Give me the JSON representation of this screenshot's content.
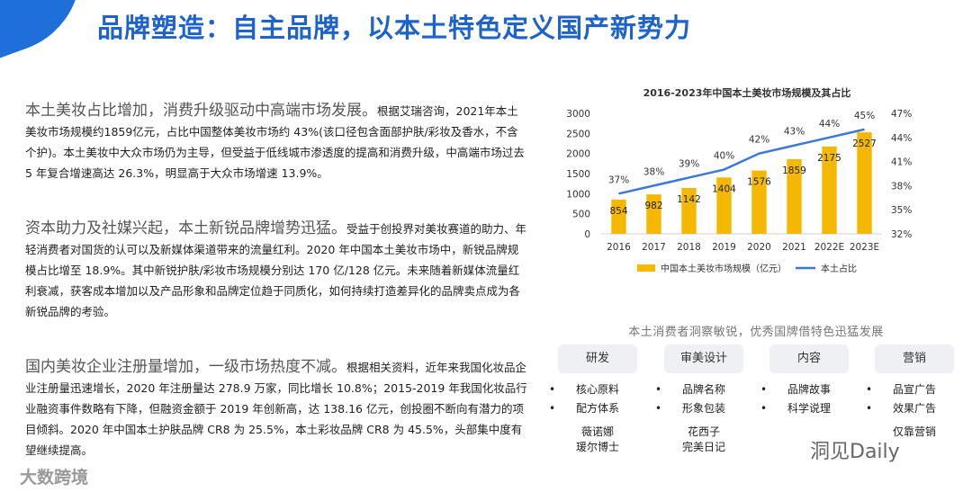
{
  "title": "品牌塑造：自主品牌，以本土特色定义国产新势力",
  "paragraphs": [
    {
      "lead": "本土美妆占比增加，消费升级驱动中高端市场发展。",
      "body": "根据艾瑞咨询，2021年本土美妆市场规模约1859亿元，占比中国整体美妆市场约 43%(该口径包含面部护肤/彩妆及香水，不含个护)。本土美妆中大众市场仍为主导，但受益于低线城市渗透度的提高和消费升级，中高端市场过去 5 年复合增速高达 26.3%，明显高于大众市场增速 13.9%。"
    },
    {
      "lead": "资本助力及社媒兴起，本土新锐品牌增势迅猛。",
      "body": "受益于创投界对美妆赛道的助力、年轻消费者对国货的认可以及新媒体渠道带来的流量红利。2020 年中国本土美妆市场中，新锐品牌规模占比增至 18.9%。其中新锐护肤/彩妆市场规模分别达 170 亿/128 亿元。未来随着新媒体流量红利衰减，获客成本增加以及产品形象和品牌定位趋于同质化，如何持续打造差异化的品牌卖点成为各新锐品牌的考验。"
    },
    {
      "lead": "国内美妆企业注册量增加，一级市场热度不减。",
      "body": "根据相关资料，近年来我国化妆品企业注册量迅速增长，2020 年注册量达 278.9 万家，同比增长 10.8%；2015-2019 年我国化妆品行业融资事件数略有下降，但融资金额于 2019 年创新高，达 138.16 亿元，创投圈不断向有潜力的项目倾斜。2020 年中国本土护肤品牌 CR8 为 25.5%，本土彩妆品牌 CR8 为 45.5%，头部集中度有望继续提高。"
    }
  ],
  "chart_data": {
    "type": "bar",
    "title": "2016-2023年中国本土美妆市场规模及其占比",
    "categories": [
      "2016",
      "2017",
      "2018",
      "2019",
      "2020",
      "2021",
      "2022E",
      "2023E"
    ],
    "series": [
      {
        "name": "中国本土美妆市场规模（亿元）",
        "type": "bar",
        "axis": "left",
        "values": [
          854,
          982,
          1142,
          1404,
          1576,
          1859,
          2175,
          2527
        ]
      },
      {
        "name": "本土占比",
        "type": "line",
        "axis": "right",
        "values": [
          37,
          38,
          39,
          40,
          42,
          43,
          44,
          45
        ],
        "labels": [
          "37%",
          "38%",
          "39%",
          "40%",
          "42%",
          "43%",
          "44%",
          "45%"
        ]
      }
    ],
    "ylim_left": [
      0,
      3000
    ],
    "yticks_left": [
      "0",
      "500",
      "1000",
      "1500",
      "2000",
      "2500",
      "3000"
    ],
    "ylim_right": [
      32,
      47
    ],
    "yticks_right": [
      "32%",
      "35%",
      "38%",
      "41%",
      "44%",
      "47%"
    ],
    "legend_position": "bottom",
    "colors": {
      "bar": "#f5b800",
      "line": "#3b78d8"
    }
  },
  "features": {
    "title": "本土消费者洞察敏锐，优秀国牌借特色迅猛发展",
    "columns": [
      {
        "head": "研发",
        "items": [
          "核心原料",
          "配方体系"
        ],
        "brands": [
          "薇诺娜",
          "瑗尔博士"
        ]
      },
      {
        "head": "审美设计",
        "items": [
          "品牌名称",
          "形象包装"
        ],
        "brands": [
          "花西子",
          "完美日记"
        ]
      },
      {
        "head": "内容",
        "items": [
          "品牌故事",
          "科学说理"
        ],
        "brands": []
      },
      {
        "head": "营销",
        "items": [
          "品宣广告",
          "效果广告"
        ],
        "brands": [
          "仅靠营销"
        ]
      }
    ]
  },
  "footer_left": "大数跨境",
  "footer_right": "洞见Daily"
}
